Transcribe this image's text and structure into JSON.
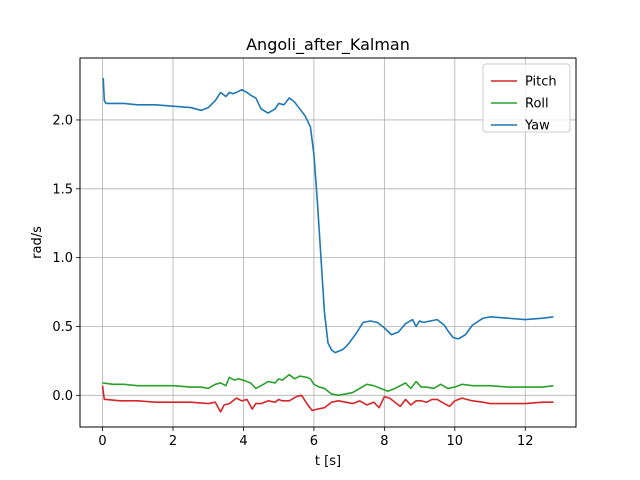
{
  "chart_data": {
    "type": "line",
    "title": "Angoli_after_Kalman",
    "xlabel": "t [s]",
    "ylabel": "rad/s",
    "xlim": [
      -0.64,
      13.44
    ],
    "ylim": [
      -0.23,
      2.45
    ],
    "xticks": [
      0,
      2,
      4,
      6,
      8,
      10,
      12
    ],
    "xtick_labels": [
      "0",
      "2",
      "4",
      "6",
      "8",
      "10",
      "12"
    ],
    "yticks": [
      0.0,
      0.5,
      1.0,
      1.5,
      2.0
    ],
    "ytick_labels": [
      "0.0",
      "0.5",
      "1.0",
      "1.5",
      "2.0"
    ],
    "grid": true,
    "legend_position": "top-right",
    "series": [
      {
        "name": "Pitch",
        "color": "#d62728",
        "x": [
          0,
          0.05,
          0.1,
          0.5,
          1.0,
          1.5,
          2.0,
          2.5,
          3.0,
          3.2,
          3.35,
          3.45,
          3.6,
          3.8,
          3.95,
          4.1,
          4.25,
          4.35,
          4.5,
          4.7,
          4.9,
          5.0,
          5.1,
          5.3,
          5.5,
          5.65,
          5.8,
          5.95,
          6.1,
          6.3,
          6.5,
          6.7,
          6.9,
          7.1,
          7.3,
          7.5,
          7.7,
          7.85,
          8.0,
          8.15,
          8.3,
          8.45,
          8.6,
          8.75,
          8.9,
          9.05,
          9.2,
          9.35,
          9.5,
          9.7,
          9.85,
          10.0,
          10.2,
          10.5,
          10.8,
          11.0,
          11.5,
          12.0,
          12.5,
          12.8
        ],
        "y": [
          0.07,
          -0.03,
          -0.03,
          -0.04,
          -0.04,
          -0.05,
          -0.05,
          -0.05,
          -0.06,
          -0.05,
          -0.12,
          -0.07,
          -0.06,
          -0.02,
          -0.04,
          -0.03,
          -0.1,
          -0.06,
          -0.06,
          -0.04,
          -0.05,
          -0.03,
          -0.04,
          -0.04,
          -0.01,
          0.0,
          -0.06,
          -0.11,
          -0.1,
          -0.09,
          -0.05,
          -0.04,
          -0.05,
          -0.06,
          -0.04,
          -0.07,
          -0.05,
          -0.09,
          -0.01,
          -0.02,
          -0.05,
          -0.08,
          -0.03,
          -0.07,
          -0.04,
          -0.04,
          -0.05,
          -0.03,
          -0.03,
          -0.06,
          -0.08,
          -0.04,
          -0.02,
          -0.04,
          -0.05,
          -0.06,
          -0.06,
          -0.06,
          -0.05,
          -0.05
        ]
      },
      {
        "name": "Roll",
        "color": "#2ca02c",
        "x": [
          0,
          0.3,
          0.6,
          1.0,
          1.5,
          2.0,
          2.5,
          2.8,
          3.0,
          3.2,
          3.35,
          3.5,
          3.6,
          3.75,
          3.85,
          4.0,
          4.2,
          4.35,
          4.5,
          4.7,
          4.9,
          5.0,
          5.1,
          5.3,
          5.45,
          5.6,
          5.8,
          5.9,
          6.0,
          6.15,
          6.3,
          6.5,
          6.7,
          6.9,
          7.1,
          7.3,
          7.5,
          7.7,
          7.9,
          8.1,
          8.3,
          8.45,
          8.6,
          8.75,
          8.9,
          9.05,
          9.2,
          9.4,
          9.6,
          9.8,
          10.0,
          10.2,
          10.5,
          11.0,
          11.5,
          12.0,
          12.5,
          12.8
        ],
        "y": [
          0.09,
          0.08,
          0.08,
          0.07,
          0.07,
          0.07,
          0.06,
          0.06,
          0.05,
          0.08,
          0.09,
          0.07,
          0.13,
          0.11,
          0.12,
          0.11,
          0.09,
          0.05,
          0.07,
          0.1,
          0.09,
          0.12,
          0.11,
          0.15,
          0.12,
          0.14,
          0.13,
          0.12,
          0.08,
          0.06,
          0.05,
          0.01,
          0.0,
          0.01,
          0.02,
          0.05,
          0.08,
          0.07,
          0.05,
          0.03,
          0.05,
          0.07,
          0.09,
          0.05,
          0.1,
          0.06,
          0.06,
          0.05,
          0.08,
          0.05,
          0.06,
          0.08,
          0.07,
          0.07,
          0.06,
          0.06,
          0.06,
          0.07
        ]
      },
      {
        "name": "Yaw",
        "color": "#1f77b4",
        "x": [
          0,
          0.02,
          0.05,
          0.1,
          0.3,
          0.6,
          1.0,
          1.5,
          2.0,
          2.5,
          2.8,
          3.0,
          3.2,
          3.35,
          3.5,
          3.6,
          3.7,
          3.8,
          3.95,
          4.1,
          4.2,
          4.35,
          4.5,
          4.7,
          4.9,
          5.0,
          5.15,
          5.3,
          5.45,
          5.6,
          5.75,
          5.9,
          6.0,
          6.1,
          6.2,
          6.3,
          6.4,
          6.5,
          6.6,
          6.7,
          6.8,
          6.9,
          7.0,
          7.2,
          7.4,
          7.6,
          7.8,
          8.0,
          8.2,
          8.4,
          8.6,
          8.8,
          8.9,
          9.0,
          9.1,
          9.3,
          9.5,
          9.7,
          9.8,
          9.95,
          10.1,
          10.3,
          10.5,
          10.8,
          11.0,
          11.5,
          12.0,
          12.5,
          12.8
        ],
        "y": [
          2.3,
          2.3,
          2.14,
          2.12,
          2.12,
          2.12,
          2.11,
          2.11,
          2.1,
          2.09,
          2.07,
          2.09,
          2.14,
          2.2,
          2.17,
          2.2,
          2.19,
          2.2,
          2.22,
          2.2,
          2.18,
          2.16,
          2.08,
          2.05,
          2.08,
          2.12,
          2.11,
          2.16,
          2.13,
          2.08,
          2.03,
          1.95,
          1.75,
          1.4,
          1.0,
          0.6,
          0.38,
          0.33,
          0.31,
          0.32,
          0.33,
          0.35,
          0.38,
          0.45,
          0.53,
          0.54,
          0.53,
          0.49,
          0.44,
          0.46,
          0.52,
          0.55,
          0.5,
          0.54,
          0.53,
          0.54,
          0.55,
          0.51,
          0.47,
          0.42,
          0.41,
          0.44,
          0.51,
          0.56,
          0.57,
          0.56,
          0.55,
          0.56,
          0.57
        ]
      }
    ]
  }
}
